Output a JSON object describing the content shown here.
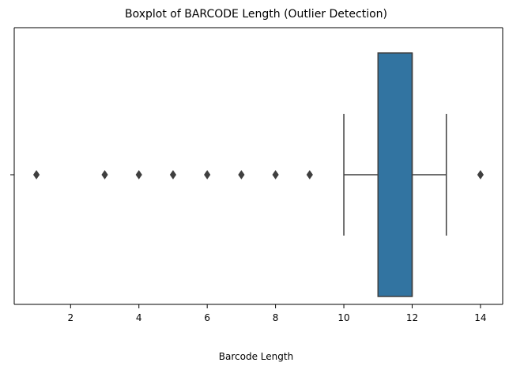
{
  "chart_data": {
    "type": "boxplot",
    "orientation": "horizontal",
    "title": "Boxplot of BARCODE Length (Outlier Detection)",
    "xlabel": "Barcode Length",
    "ylabel": "",
    "xlim": [
      0.35,
      14.65
    ],
    "xticks": [
      2,
      4,
      6,
      8,
      10,
      12,
      14
    ],
    "grid": false,
    "box": {
      "whisker_low": 10,
      "q1": 11,
      "median": 12,
      "q3": 12,
      "whisker_high": 13,
      "color": "#3274a1",
      "edge_color": "#3f3f3f"
    },
    "outliers": [
      1,
      3,
      4,
      5,
      6,
      7,
      8,
      9,
      14
    ]
  }
}
